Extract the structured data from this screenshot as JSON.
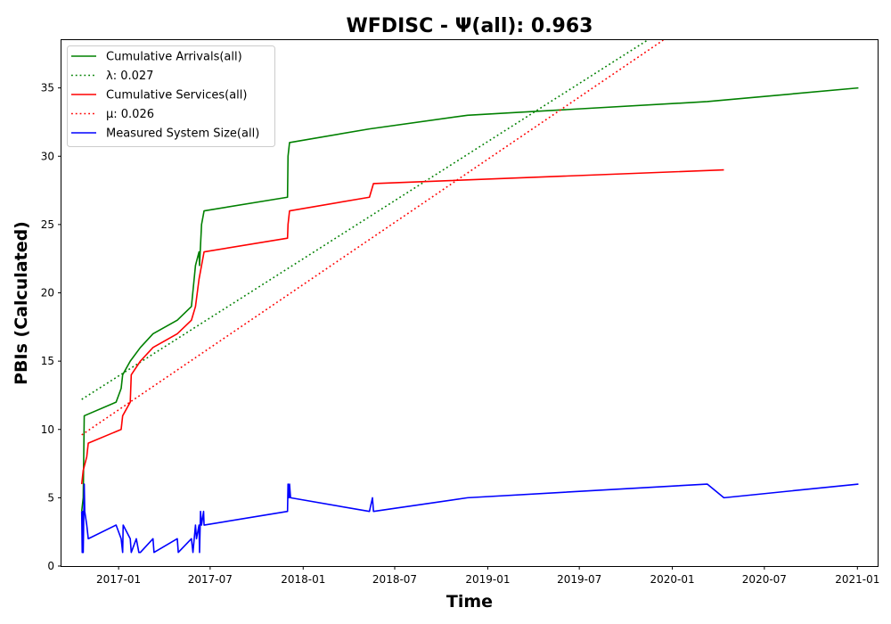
{
  "chart_data": {
    "type": "line",
    "title": "WFDISC -  Ψ(all): 0.963",
    "xlabel": "Time",
    "ylabel": "PBIs (Calculated)",
    "xlim": [
      "2016-09-10",
      "2021-02-10"
    ],
    "ylim": [
      0,
      38.5
    ],
    "x_ticks": [
      "2017-01",
      "2017-07",
      "2018-01",
      "2018-07",
      "2019-01",
      "2019-07",
      "2020-01",
      "2020-07",
      "2021-01"
    ],
    "y_ticks": [
      0,
      5,
      10,
      15,
      20,
      25,
      30,
      35
    ],
    "grid": false,
    "legend_position": "top-left",
    "series": [
      {
        "name": "Cumulative Arrivals(all)",
        "color": "#008000",
        "style": "solid",
        "points": [
          [
            "2016-10-20",
            4
          ],
          [
            "2016-10-23",
            5
          ],
          [
            "2016-10-25",
            11
          ],
          [
            "2016-12-27",
            12
          ],
          [
            "2017-01-06",
            13
          ],
          [
            "2017-01-09",
            14
          ],
          [
            "2017-01-24",
            15
          ],
          [
            "2017-02-13",
            16
          ],
          [
            "2017-03-10",
            17
          ],
          [
            "2017-04-27",
            18
          ],
          [
            "2017-05-25",
            19
          ],
          [
            "2017-06-02",
            22
          ],
          [
            "2017-06-09",
            23
          ],
          [
            "2017-06-10",
            22
          ],
          [
            "2017-06-14",
            25
          ],
          [
            "2017-06-19",
            26
          ],
          [
            "2017-12-01",
            27
          ],
          [
            "2017-12-02",
            30
          ],
          [
            "2017-12-05",
            31
          ],
          [
            "2018-05-12",
            32
          ],
          [
            "2018-11-22",
            33
          ],
          [
            "2020-03-10",
            34
          ],
          [
            "2021-01-03",
            35
          ]
        ]
      },
      {
        "name": "λ: 0.027",
        "color": "#008000",
        "style": "dotted",
        "points": [
          [
            "2016-10-20",
            12.2
          ],
          [
            "2019-11-13",
            38.5
          ]
        ]
      },
      {
        "name": "Cumulative Services(all)",
        "color": "#ff0000",
        "style": "solid",
        "points": [
          [
            "2016-10-20",
            6
          ],
          [
            "2016-10-23",
            7
          ],
          [
            "2016-10-30",
            8
          ],
          [
            "2016-11-02",
            9
          ],
          [
            "2017-01-06",
            10
          ],
          [
            "2017-01-09",
            11
          ],
          [
            "2017-01-24",
            12
          ],
          [
            "2017-01-26",
            14
          ],
          [
            "2017-02-13",
            15
          ],
          [
            "2017-03-10",
            16
          ],
          [
            "2017-04-27",
            17
          ],
          [
            "2017-05-25",
            18
          ],
          [
            "2017-06-02",
            19
          ],
          [
            "2017-06-09",
            21
          ],
          [
            "2017-06-19",
            23
          ],
          [
            "2017-12-01",
            24
          ],
          [
            "2017-12-02",
            25
          ],
          [
            "2017-12-05",
            26
          ],
          [
            "2018-05-12",
            27
          ],
          [
            "2018-05-20",
            28
          ],
          [
            "2020-04-12",
            29
          ]
        ]
      },
      {
        "name": "μ: 0.026",
        "color": "#ff0000",
        "style": "dotted",
        "points": [
          [
            "2016-10-20",
            9.6
          ],
          [
            "2019-12-14",
            38.5
          ]
        ]
      },
      {
        "name": "Measured System Size(all)",
        "color": "#0000ff",
        "style": "solid",
        "points": [
          [
            "2016-10-20",
            4
          ],
          [
            "2016-10-21",
            1
          ],
          [
            "2016-10-22",
            4
          ],
          [
            "2016-10-23",
            1
          ],
          [
            "2016-10-25",
            6
          ],
          [
            "2016-10-26",
            4
          ],
          [
            "2016-10-30",
            3
          ],
          [
            "2016-11-02",
            2
          ],
          [
            "2016-12-27",
            3
          ],
          [
            "2017-01-06",
            2
          ],
          [
            "2017-01-09",
            1
          ],
          [
            "2017-01-10",
            3
          ],
          [
            "2017-01-24",
            2
          ],
          [
            "2017-01-26",
            1
          ],
          [
            "2017-02-05",
            2
          ],
          [
            "2017-02-10",
            1
          ],
          [
            "2017-02-13",
            1
          ],
          [
            "2017-03-10",
            2
          ],
          [
            "2017-03-12",
            1
          ],
          [
            "2017-04-27",
            2
          ],
          [
            "2017-04-29",
            1
          ],
          [
            "2017-05-25",
            2
          ],
          [
            "2017-05-28",
            1
          ],
          [
            "2017-06-02",
            3
          ],
          [
            "2017-06-04",
            2
          ],
          [
            "2017-06-09",
            3
          ],
          [
            "2017-06-10",
            1
          ],
          [
            "2017-06-12",
            4
          ],
          [
            "2017-06-14",
            3
          ],
          [
            "2017-06-18",
            4
          ],
          [
            "2017-06-19",
            3
          ],
          [
            "2017-12-01",
            4
          ],
          [
            "2017-12-02",
            6
          ],
          [
            "2017-12-04",
            5
          ],
          [
            "2017-12-05",
            6
          ],
          [
            "2017-12-07",
            5
          ],
          [
            "2018-05-12",
            4
          ],
          [
            "2018-05-18",
            5
          ],
          [
            "2018-05-20",
            4
          ],
          [
            "2018-11-22",
            5
          ],
          [
            "2020-03-10",
            6
          ],
          [
            "2020-04-12",
            5
          ],
          [
            "2021-01-03",
            6
          ]
        ]
      }
    ]
  }
}
